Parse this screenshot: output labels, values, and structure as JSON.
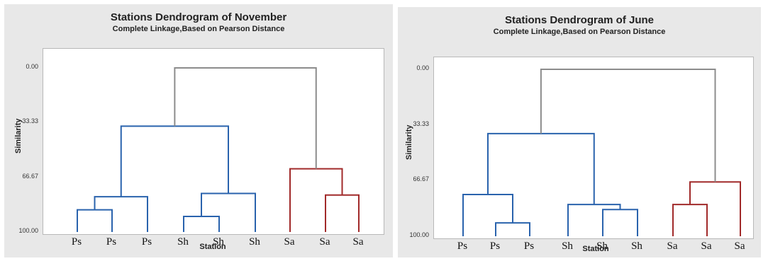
{
  "chart_data": [
    {
      "type": "dendrogram",
      "title": "Stations Dendrogram of November",
      "subtitle": "Complete Linkage,Based on Pearson Distance",
      "xlabel": "Station",
      "ylabel": "Similarity",
      "yticks": [
        "0.00",
        "33.33",
        "66.67",
        "100.00"
      ],
      "ylim": [
        0,
        100
      ],
      "leaves": [
        "Ps",
        "Ps",
        "Ps",
        "Sh",
        "Sh",
        "Sh",
        "Sa",
        "Sa",
        "Sa"
      ],
      "merges": [
        {
          "left": "L3",
          "right": "L4",
          "similarity": 90.5,
          "color": "#2a63ad"
        },
        {
          "left": "L0",
          "right": "L1",
          "similarity": 86.5,
          "color": "#2a63ad"
        },
        {
          "left": "L7",
          "right": "L8",
          "similarity": 77.5,
          "color": "#a12a2a"
        },
        {
          "left": "C0",
          "right": "L5",
          "similarity": 76.5,
          "color": "#2a63ad"
        },
        {
          "left": "C1",
          "right": "L2",
          "similarity": 78.5,
          "color": "#2a63ad"
        },
        {
          "left": "L6",
          "right": "C2",
          "similarity": 61.5,
          "color": "#a12a2a"
        },
        {
          "left": "C4",
          "right": "C3",
          "similarity": 35.5,
          "color": "#2a63ad"
        },
        {
          "left": "C6",
          "right": "C5",
          "similarity": 0.0,
          "color": "#8c8c8c"
        }
      ]
    },
    {
      "type": "dendrogram",
      "title": "Stations Dendrogram of June",
      "subtitle": "Complete Linkage,Based on Pearson Distance",
      "xlabel": "Station",
      "ylabel": "Similarity",
      "yticks": [
        "0.00",
        "33.33",
        "66.67",
        "100.00"
      ],
      "ylim": [
        0,
        100
      ],
      "leaves": [
        "Ps",
        "Ps",
        "Ps",
        "Sh",
        "Sh",
        "Sh",
        "Sa",
        "Sa",
        "Sa"
      ],
      "merges": [
        {
          "left": "L1",
          "right": "L2",
          "similarity": 92.0,
          "color": "#2a63ad"
        },
        {
          "left": "L4",
          "right": "L5",
          "similarity": 84.0,
          "color": "#2a63ad"
        },
        {
          "left": "L0",
          "right": "C0",
          "similarity": 75.0,
          "color": "#2a63ad"
        },
        {
          "left": "L3",
          "right": "C1",
          "similarity": 81.0,
          "color": "#2a63ad"
        },
        {
          "left": "L6",
          "right": "L7",
          "similarity": 81.0,
          "color": "#a12a2a"
        },
        {
          "left": "C4",
          "right": "L8",
          "similarity": 67.5,
          "color": "#a12a2a"
        },
        {
          "left": "C2",
          "right": "C3",
          "similarity": 38.5,
          "color": "#2a63ad"
        },
        {
          "left": "C6",
          "right": "C5",
          "similarity": 0.0,
          "color": "#8c8c8c"
        }
      ]
    }
  ]
}
